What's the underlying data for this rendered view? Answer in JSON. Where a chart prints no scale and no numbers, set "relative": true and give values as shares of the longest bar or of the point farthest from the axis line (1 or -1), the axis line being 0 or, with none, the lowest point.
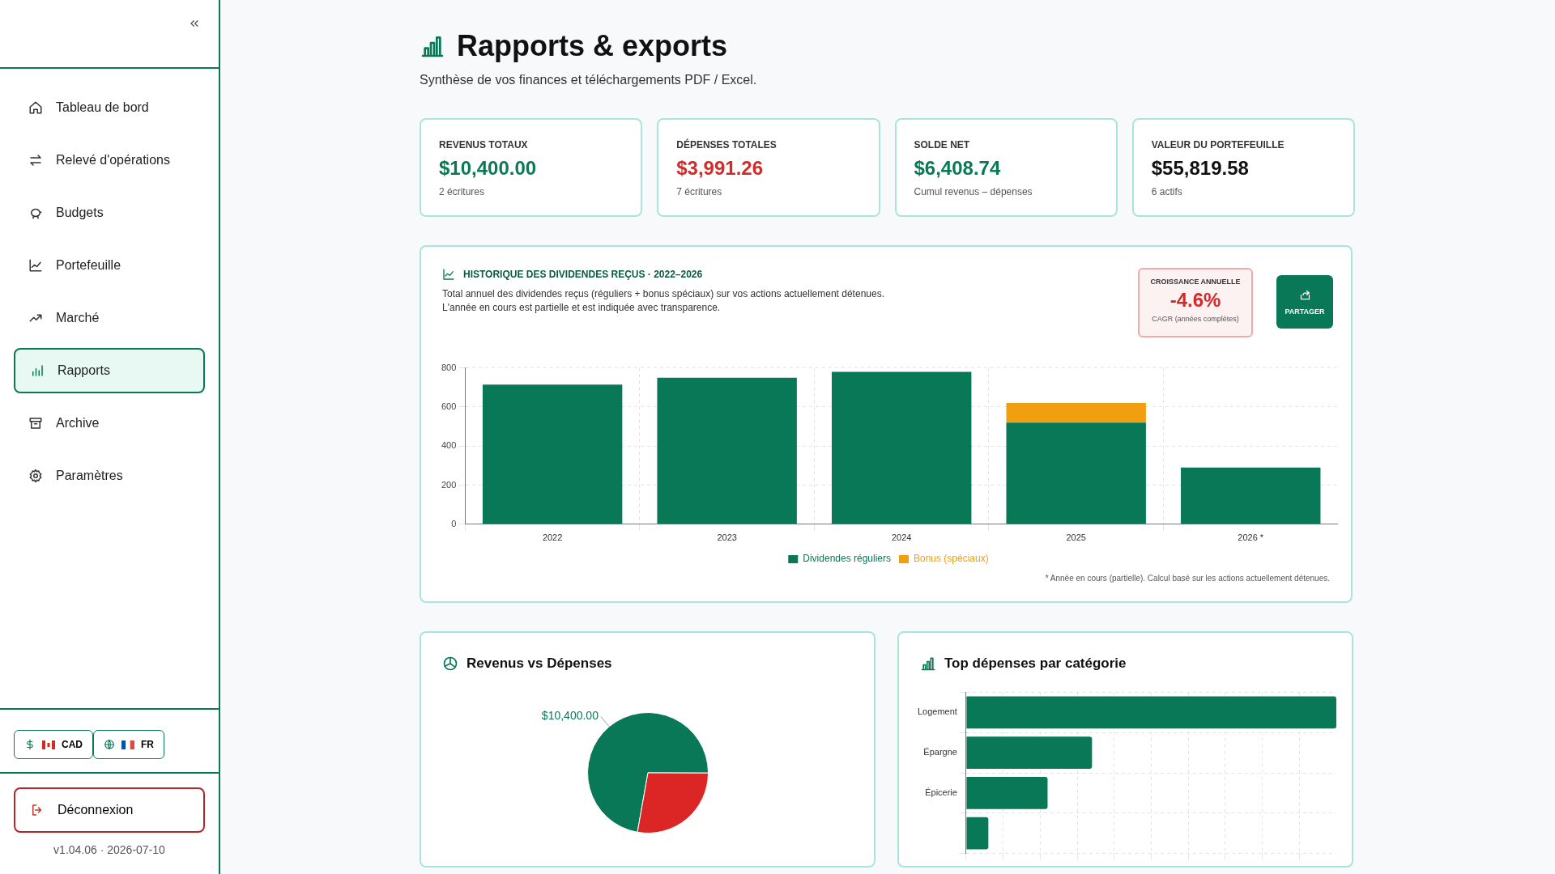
{
  "chart_data": [
    {
      "type": "other",
      "annotations": [
        "Tableau de bord",
        "Relevé d'opérations",
        "Budgets",
        "Portefeuille",
        "Marché",
        "Rapports",
        "Archive",
        "Paramètres",
        "CAD",
        "FR",
        "Déconnexion",
        "v1.04.06 · 2026-07-10"
      ]
    },
    {
      "type": "other",
      "title": "Rapports & exports",
      "subtitle": "Synthèse de vos finances et téléchargements PDF / Excel.",
      "categories": [
        "REVENUS TOTAUX",
        "DÉPENSES TOTALES",
        "SOLDE NET",
        "VALEUR DU PORTEFEUILLE"
      ],
      "value_labels": [
        "$10,400.00",
        "$3,991.26",
        "$6,408.74",
        "$55,819.58"
      ],
      "annotations": [
        "2 écritures",
        "7 écritures",
        "Cumul revenus – dépenses",
        "6 actifs"
      ]
    },
    {
      "type": "bar",
      "title": "HISTORIQUE DES DIVIDENDES REÇUS · 2022–2026",
      "subtitle": "Total annuel des dividendes reçus (réguliers + bonus spéciaux) sur vos actions actuellement détenues.\nL'année en cours est partielle et est indiquée avec transparence.",
      "categories": [
        "2022",
        "2023",
        "2024",
        "2025",
        "2026 *"
      ],
      "stacked": true,
      "series": [
        {
          "name": "Dividendes réguliers",
          "color": "#087856",
          "values": [
            715,
            750,
            780,
            520,
            290
          ]
        },
        {
          "name": "Bonus (spéciaux)",
          "color": "#f29f0f",
          "values": [
            null,
            null,
            null,
            100,
            null
          ]
        }
      ],
      "ylim": [
        0,
        800
      ],
      "yticks": [
        0,
        200,
        400,
        600,
        800
      ],
      "grid": true,
      "legend": "bottom",
      "annotations": [
        "CROISSANCE ANNUELLE",
        "-4.6%",
        "CAGR (années complètes)",
        "PARTAGER",
        "* Année en cours (partielle). Calcul basé sur les actions actuellement détenues."
      ]
    },
    {
      "type": "pie",
      "title": "Revenus vs Dépenses",
      "categories": [
        null,
        null
      ],
      "values": [
        10400,
        3991.26
      ],
      "colors": [
        "#087856",
        "#dc2626"
      ],
      "value_labels": [
        "$10,400.00",
        null
      ]
    },
    {
      "type": "bar",
      "title": "Top dépenses par catégorie",
      "orientation": "horizontal",
      "relative": true,
      "categories": [
        "Logement",
        "Épargne",
        "Épicerie",
        null
      ],
      "values": [
        1,
        0.34,
        0.22,
        0.06
      ],
      "color": "#087856",
      "grid": true
    }
  ]
}
